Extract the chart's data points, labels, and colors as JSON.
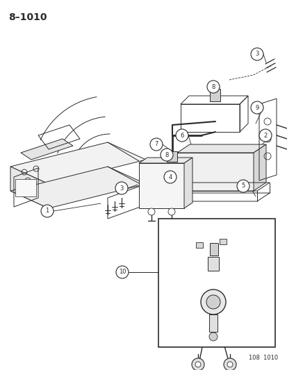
{
  "title": "8–1010",
  "footer": "108  1010",
  "bg": "#ffffff",
  "lc": "#2a2a2a",
  "fig_w": 4.14,
  "fig_h": 5.33,
  "dpi": 100
}
